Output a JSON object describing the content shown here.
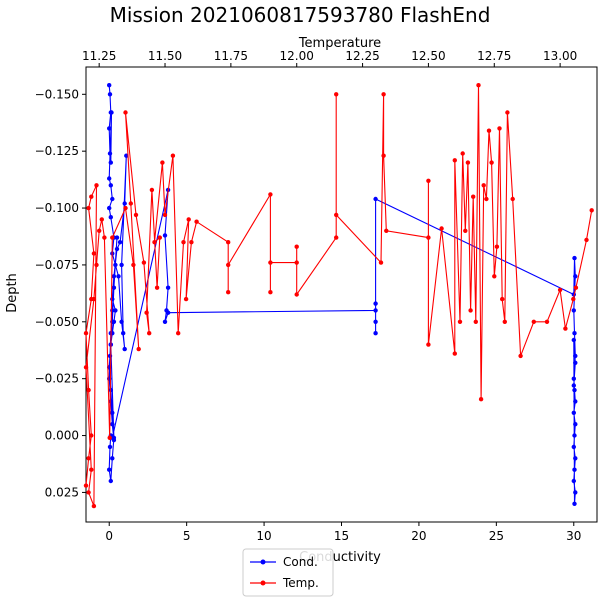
{
  "chart_data": {
    "type": "line",
    "title": "Mission 2021060817593780 FlashEnd",
    "ylabel": "Depth",
    "y_inverted": true,
    "ylim": [
      0.038,
      -0.162
    ],
    "grid": false,
    "legend_placement": "bottom-center",
    "yticks": [
      "−0.150",
      "−0.125",
      "−0.100",
      "−0.075",
      "−0.050",
      "−0.025",
      "0.000",
      "0.025"
    ],
    "y_tick_values": [
      -0.15,
      -0.125,
      -0.1,
      -0.075,
      -0.05,
      -0.025,
      0.0,
      0.025
    ],
    "x_bottom": {
      "label": "Conductivity",
      "lim": [
        -1.5,
        31.5
      ],
      "ticks": [
        "0",
        "5",
        "10",
        "15",
        "20",
        "25",
        "30"
      ],
      "tick_values": [
        0,
        5,
        10,
        15,
        20,
        25,
        30
      ]
    },
    "x_top": {
      "label": "Temperature",
      "lim": [
        11.2,
        13.14
      ],
      "ticks": [
        "11.25",
        "11.50",
        "11.75",
        "12.00",
        "12.25",
        "12.50",
        "12.75",
        "13.00"
      ],
      "tick_values": [
        11.25,
        11.5,
        11.75,
        12.0,
        12.25,
        12.5,
        12.75,
        13.0
      ]
    },
    "series": [
      {
        "name": "Cond.",
        "axis": "bottom",
        "color": "#0000ff",
        "x": [
          0.0,
          0.05,
          0.1,
          0.0,
          0.05,
          0.1,
          0.15,
          0.0,
          0.1,
          0.2,
          0.0,
          0.1,
          0.3,
          0.2,
          0.4,
          0.6,
          0.8,
          1.0,
          0.9,
          0.8,
          1.1,
          1.0,
          0.7,
          0.5,
          0.3,
          0.2,
          0.4,
          0.3,
          0.2,
          0.1,
          0.0,
          0.1,
          0.2,
          0.3,
          0.2,
          0.1,
          0.0,
          0.05,
          0.1,
          0.2,
          0.5,
          0.3,
          0.2,
          0.1,
          0.3,
          0.2,
          0.1,
          0.0,
          0.05,
          0.1,
          0.2,
          3.8,
          3.6,
          3.8,
          3.7,
          3.6,
          3.8,
          17.2,
          17.2,
          17.2,
          17.2,
          17.2,
          30.0,
          30.05,
          30.1,
          30.0,
          30.05,
          30.1,
          30.0,
          30.05,
          30.1,
          30.0,
          30.1,
          30.05,
          30.0,
          30.1,
          30.05,
          30.0,
          30.1,
          30.05,
          30.0,
          30.1,
          30.0
        ],
        "y": [
          -0.154,
          -0.15,
          -0.142,
          -0.135,
          -0.124,
          -0.12,
          -0.142,
          -0.113,
          -0.11,
          -0.104,
          -0.1,
          -0.096,
          -0.087,
          -0.08,
          -0.075,
          -0.07,
          -0.05,
          -0.038,
          -0.045,
          -0.075,
          -0.123,
          -0.102,
          -0.085,
          -0.082,
          -0.07,
          -0.06,
          -0.055,
          -0.05,
          -0.045,
          -0.04,
          -0.03,
          -0.02,
          -0.01,
          0.002,
          -0.005,
          -0.015,
          -0.025,
          -0.035,
          -0.045,
          -0.055,
          -0.087,
          -0.065,
          -0.05,
          -0.04,
          0.001,
          0.01,
          0.02,
          0.015,
          0.005,
          0.0,
          0.001,
          -0.108,
          -0.088,
          -0.065,
          -0.055,
          -0.05,
          -0.054,
          -0.055,
          -0.058,
          -0.05,
          -0.045,
          -0.104,
          -0.062,
          -0.078,
          -0.07,
          -0.055,
          -0.045,
          -0.035,
          -0.025,
          -0.02,
          -0.015,
          -0.01,
          -0.005,
          0.0,
          0.005,
          0.01,
          0.015,
          0.02,
          0.025,
          0.03,
          -0.042,
          -0.032,
          -0.022
        ]
      },
      {
        "name": "Temp.",
        "axis": "top",
        "color": "#ff0000",
        "x": [
          11.2,
          11.21,
          11.22,
          11.21,
          11.2,
          11.22,
          11.23,
          11.21,
          11.22,
          11.24,
          11.23,
          11.21,
          11.22,
          11.2,
          11.23,
          11.24,
          11.25,
          11.26,
          11.27,
          11.29,
          11.3,
          11.35,
          11.38,
          11.4,
          11.37,
          11.35,
          11.39,
          11.42,
          11.44,
          11.43,
          11.45,
          11.47,
          11.48,
          11.46,
          11.49,
          11.5,
          11.53,
          11.55,
          11.57,
          11.59,
          11.58,
          11.6,
          11.62,
          11.74,
          11.74,
          11.74,
          11.9,
          11.9,
          11.9,
          12.0,
          12.0,
          12.0,
          12.15,
          12.15,
          12.15,
          12.32,
          12.33,
          12.33,
          12.34,
          12.5,
          12.5,
          12.5,
          12.55,
          12.6,
          12.6,
          12.62,
          12.63,
          12.64,
          12.65,
          12.66,
          12.67,
          12.68,
          12.69,
          12.7,
          12.71,
          12.72,
          12.73,
          12.74,
          12.75,
          12.76,
          12.77,
          12.78,
          12.79,
          12.8,
          12.82,
          12.85,
          12.9,
          12.95,
          13.0,
          13.02,
          13.05,
          13.06,
          13.1,
          13.12
        ],
        "y": [
          0.022,
          0.01,
          0.0,
          -0.02,
          -0.045,
          -0.06,
          -0.08,
          -0.1,
          -0.105,
          -0.11,
          0.031,
          0.025,
          0.015,
          -0.03,
          -0.06,
          -0.075,
          -0.09,
          -0.095,
          -0.087,
          0.001,
          -0.087,
          -0.1,
          -0.075,
          -0.038,
          -0.102,
          -0.142,
          -0.097,
          -0.076,
          -0.045,
          -0.054,
          -0.108,
          -0.065,
          -0.087,
          -0.085,
          -0.12,
          -0.097,
          -0.123,
          -0.045,
          -0.085,
          -0.095,
          -0.06,
          -0.085,
          -0.094,
          -0.085,
          -0.063,
          -0.075,
          -0.106,
          -0.063,
          -0.076,
          -0.076,
          -0.083,
          -0.062,
          -0.087,
          -0.15,
          -0.097,
          -0.076,
          -0.15,
          -0.123,
          -0.09,
          -0.087,
          -0.112,
          -0.04,
          -0.091,
          -0.036,
          -0.121,
          -0.05,
          -0.124,
          -0.09,
          -0.12,
          -0.055,
          -0.105,
          -0.05,
          -0.154,
          -0.016,
          -0.11,
          -0.104,
          -0.134,
          -0.12,
          -0.07,
          -0.083,
          -0.135,
          -0.06,
          -0.05,
          -0.142,
          -0.104,
          -0.035,
          -0.05,
          -0.05,
          -0.064,
          -0.047,
          -0.06,
          -0.065,
          -0.086,
          -0.099
        ]
      }
    ]
  }
}
